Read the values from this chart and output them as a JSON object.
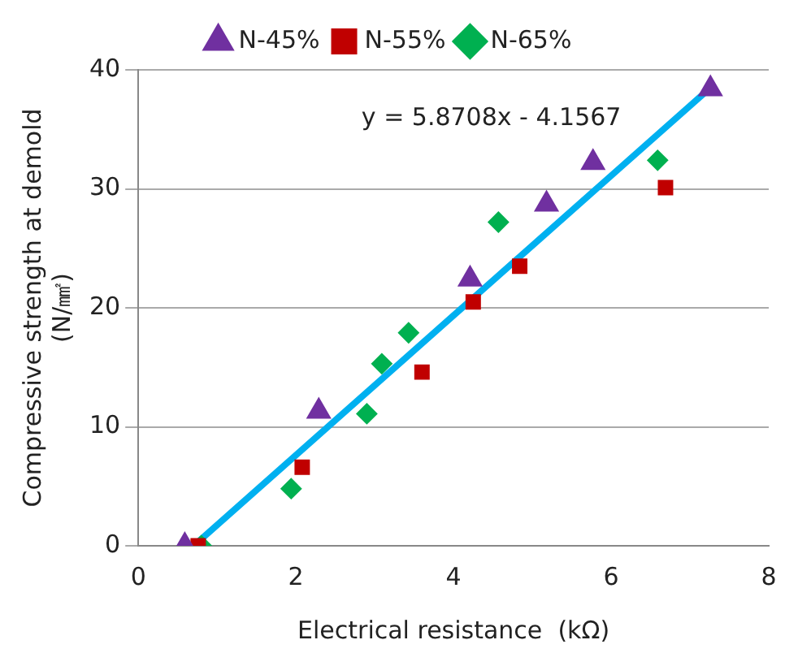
{
  "chart_data": {
    "type": "scatter",
    "xlabel": "Electrical resistance  (kΩ)",
    "ylabel": "Compressive strength at demold\n(N/㎟)",
    "xlim": [
      0,
      8
    ],
    "xticks": [
      0,
      2,
      4,
      6,
      8
    ],
    "ylim": [
      0,
      40
    ],
    "yticks": [
      0,
      10,
      20,
      30,
      40
    ],
    "grid": "y",
    "legend": "top",
    "annotations": [
      "y = 5.8708x - 4.1567"
    ],
    "series": [
      {
        "name": "N-45%",
        "color": "#7030a0",
        "marker": "triangle",
        "x": [
          0.59,
          2.29,
          4.21,
          5.18,
          5.77,
          7.26
        ],
        "values": [
          0,
          11.3,
          22.4,
          28.7,
          32.2,
          38.4
        ]
      },
      {
        "name": "N-55%",
        "color": "#c00000",
        "marker": "square",
        "x": [
          0.76,
          2.08,
          3.6,
          4.25,
          4.84,
          6.69
        ],
        "values": [
          0,
          6.6,
          14.6,
          20.5,
          23.5,
          30.1
        ]
      },
      {
        "name": "N-65%",
        "color": "#00b050",
        "marker": "diamond",
        "x": [
          0.8,
          1.94,
          2.9,
          3.09,
          3.43,
          4.57,
          6.59
        ],
        "values": [
          0,
          4.8,
          11.1,
          15.3,
          17.9,
          27.2,
          32.4
        ]
      },
      {
        "type": "line",
        "color": "#00b0f0",
        "marker": "none",
        "x": [
          0.72,
          7.26
        ],
        "values": [
          0.1,
          38.5
        ]
      }
    ]
  }
}
